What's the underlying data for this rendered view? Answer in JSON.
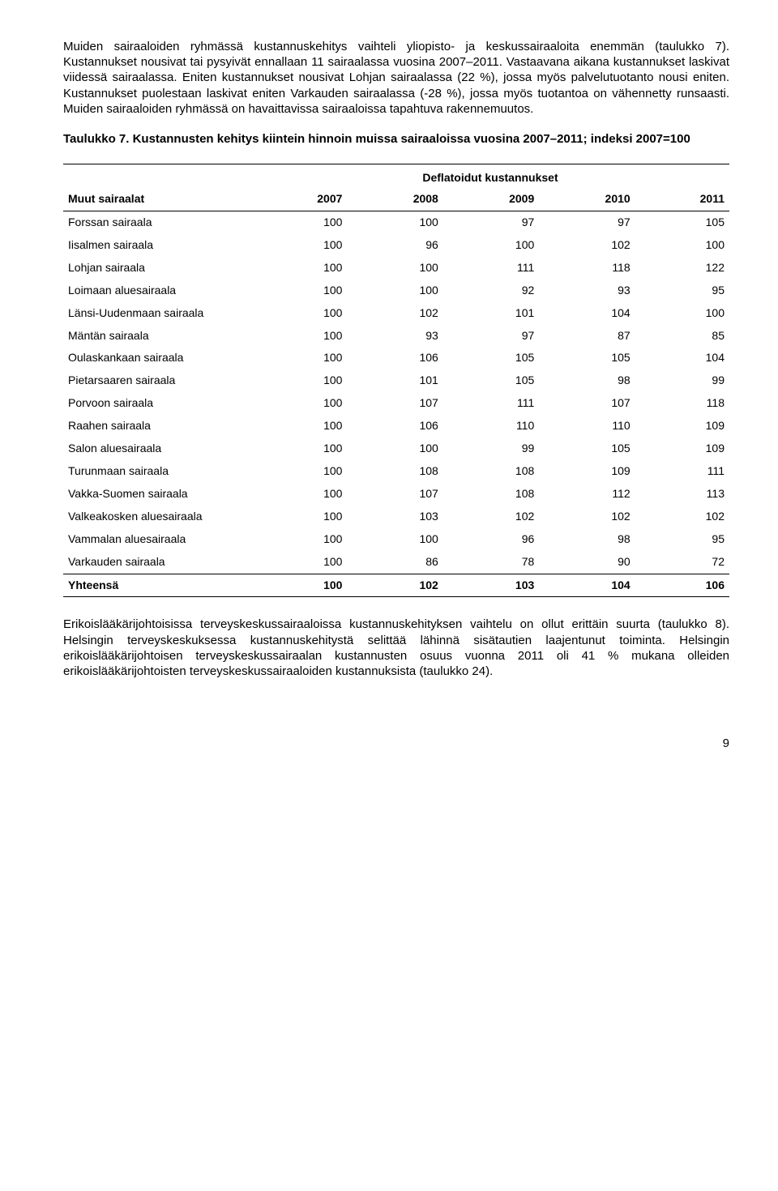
{
  "para1": "Muiden sairaaloiden ryhmässä kustannuskehitys vaihteli yliopisto- ja keskussairaaloita enemmän (taulukko 7). Kustannukset nousivat tai pysyivät ennallaan 11 sairaalassa vuosina 2007–2011. Vastaavana aikana kustannukset laskivat viidessä sairaalassa. Eniten kustannukset nousivat Lohjan sairaalassa (22 %), jossa myös palvelutuotanto nousi eniten. Kustannukset puolestaan laskivat eniten Varkauden sairaalassa (-28 %), jossa myös tuotantoa on vähennetty runsaasti. Muiden sairaaloiden ryhmässä on havaittavissa sairaaloissa tapahtuva rakennemuutos.",
  "tableTitle": "Taulukko 7. Kustannusten kehitys kiintein hinnoin muissa sairaaloissa vuosina 2007–2011; indeksi 2007=100",
  "deflatedHeader": "Deflatoidut kustannukset",
  "colLabel": "Muut sairaalat",
  "years": [
    "2007",
    "2008",
    "2009",
    "2010",
    "2011"
  ],
  "rows": [
    {
      "name": "Forssan sairaala",
      "v": [
        100,
        100,
        97,
        97,
        105
      ]
    },
    {
      "name": "Iisalmen sairaala",
      "v": [
        100,
        96,
        100,
        102,
        100
      ]
    },
    {
      "name": "Lohjan sairaala",
      "v": [
        100,
        100,
        111,
        118,
        122
      ]
    },
    {
      "name": "Loimaan aluesairaala",
      "v": [
        100,
        100,
        92,
        93,
        95
      ]
    },
    {
      "name": "Länsi-Uudenmaan sairaala",
      "v": [
        100,
        102,
        101,
        104,
        100
      ]
    },
    {
      "name": "Mäntän sairaala",
      "v": [
        100,
        93,
        97,
        87,
        85
      ]
    },
    {
      "name": "Oulaskankaan sairaala",
      "v": [
        100,
        106,
        105,
        105,
        104
      ]
    },
    {
      "name": "Pietarsaaren sairaala",
      "v": [
        100,
        101,
        105,
        98,
        99
      ]
    },
    {
      "name": "Porvoon sairaala",
      "v": [
        100,
        107,
        111,
        107,
        118
      ]
    },
    {
      "name": "Raahen sairaala",
      "v": [
        100,
        106,
        110,
        110,
        109
      ]
    },
    {
      "name": "Salon aluesairaala",
      "v": [
        100,
        100,
        99,
        105,
        109
      ]
    },
    {
      "name": "Turunmaan sairaala",
      "v": [
        100,
        108,
        108,
        109,
        111
      ]
    },
    {
      "name": "Vakka-Suomen sairaala",
      "v": [
        100,
        107,
        108,
        112,
        113
      ]
    },
    {
      "name": "Valkeakosken aluesairaala",
      "v": [
        100,
        103,
        102,
        102,
        102
      ]
    },
    {
      "name": "Vammalan aluesairaala",
      "v": [
        100,
        100,
        96,
        98,
        95
      ]
    },
    {
      "name": "Varkauden sairaala",
      "v": [
        100,
        86,
        78,
        90,
        72
      ]
    }
  ],
  "totalLabel": "Yhteensä",
  "totalValues": [
    100,
    102,
    103,
    104,
    106
  ],
  "para2": "Erikoislääkärijohtoisissa terveyskeskussairaaloissa kustannuskehityksen vaihtelu on ollut erittäin suurta (taulukko 8). Helsingin terveyskeskuksessa kustannuskehitystä selittää lähinnä sisätautien laajentunut toiminta. Helsingin erikoislääkärijohtoisen terveyskeskussairaalan kustannusten osuus vuonna 2011 oli 41 % mukana olleiden erikoislääkärijohtoisten terveyskeskussairaaloiden kustannuksista (taulukko 24).",
  "pageNumber": "9"
}
